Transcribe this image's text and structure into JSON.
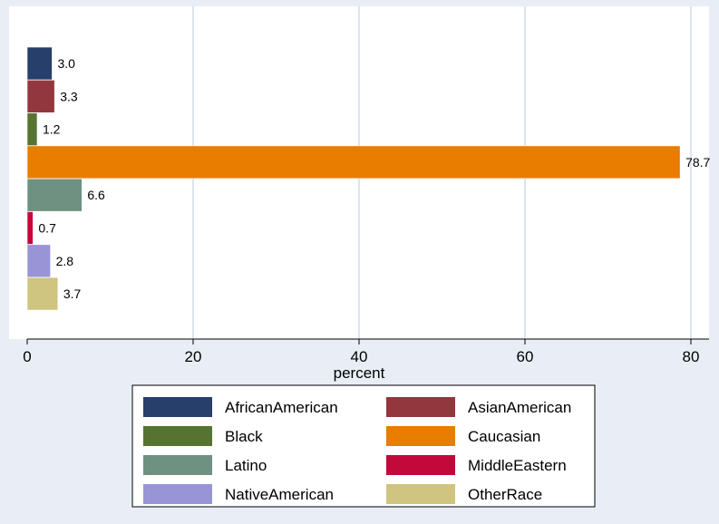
{
  "chart_data": {
    "type": "bar",
    "orientation": "horizontal",
    "xlabel": "percent",
    "xlim": [
      0,
      82
    ],
    "xticks": [
      0,
      20,
      40,
      60,
      80
    ],
    "grid": true,
    "legend_position": "bottom",
    "series": [
      {
        "name": "AfricanAmerican",
        "value": 3.0,
        "label": "3.0",
        "color": "#263f6b"
      },
      {
        "name": "AsianAmerican",
        "value": 3.3,
        "label": "3.3",
        "color": "#93373f"
      },
      {
        "name": "Black",
        "value": 1.2,
        "label": "1.2",
        "color": "#567330"
      },
      {
        "name": "Caucasian",
        "value": 78.7,
        "label": "78.7",
        "color": "#e87d00"
      },
      {
        "name": "Latino",
        "value": 6.6,
        "label": "6.6",
        "color": "#6e9181"
      },
      {
        "name": "MiddleEastern",
        "value": 0.7,
        "label": "0.7",
        "color": "#c3093c"
      },
      {
        "name": "NativeAmerican",
        "value": 2.8,
        "label": "2.8",
        "color": "#9994d6"
      },
      {
        "name": "OtherRace",
        "value": 3.7,
        "label": "3.7",
        "color": "#cfc480"
      }
    ]
  }
}
